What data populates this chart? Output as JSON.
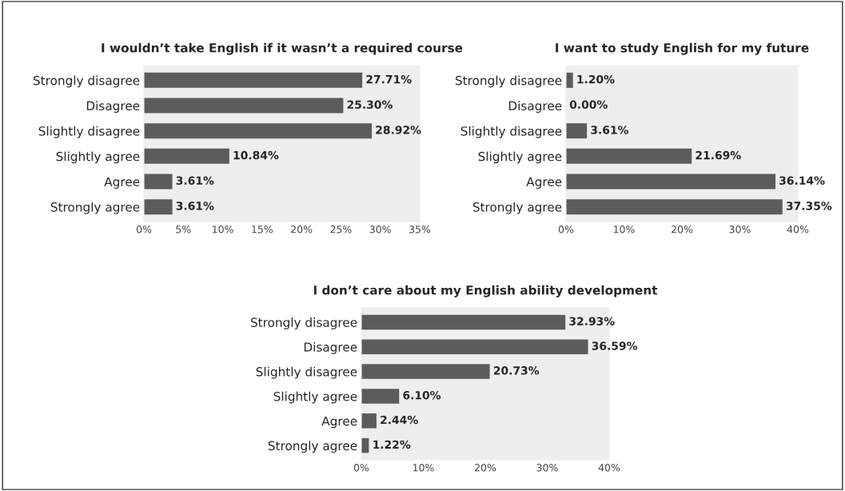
{
  "chart_data": [
    {
      "type": "bar",
      "orientation": "horizontal",
      "title": "I wouldn’t take English if it wasn’t a required course",
      "categories": [
        "Strongly disagree",
        "Disagree",
        "Slightly disagree",
        "Slightly agree",
        "Agree",
        "Strongly agree"
      ],
      "values": [
        27.71,
        25.3,
        28.92,
        10.84,
        3.61,
        3.61
      ],
      "value_labels": [
        "27.71%",
        "25.30%",
        "28.92%",
        "10.84%",
        "3.61%",
        "3.61%"
      ],
      "color": "#5c5c5c",
      "xlim": [
        0,
        35
      ],
      "xticks": [
        {
          "value": 0,
          "label": "0%"
        },
        {
          "value": 5,
          "label": "5%"
        },
        {
          "value": 10,
          "label": "10%"
        },
        {
          "value": 15,
          "label": "15%"
        },
        {
          "value": 20,
          "label": "20%"
        },
        {
          "value": 25,
          "label": "25%"
        },
        {
          "value": 30,
          "label": "30%"
        },
        {
          "value": 35,
          "label": "35%"
        }
      ],
      "grid": false
    },
    {
      "type": "bar",
      "orientation": "horizontal",
      "title": "I want to study English for my future",
      "categories": [
        "Strongly disagree",
        "Disagree",
        "Slightly disagree",
        "Slightly agree",
        "Agree",
        "Strongly agree"
      ],
      "values": [
        1.2,
        0.0,
        3.61,
        21.69,
        36.14,
        37.35
      ],
      "value_labels": [
        "1.20%",
        "0.00%",
        "3.61%",
        "21.69%",
        "36.14%",
        "37.35%"
      ],
      "color": "#5c5c5c",
      "xlim": [
        0,
        40
      ],
      "xticks": [
        {
          "value": 0,
          "label": "0%"
        },
        {
          "value": 10,
          "label": "10%"
        },
        {
          "value": 20,
          "label": "20%"
        },
        {
          "value": 30,
          "label": "30%"
        },
        {
          "value": 40,
          "label": "40%"
        }
      ],
      "grid": false
    },
    {
      "type": "bar",
      "orientation": "horizontal",
      "title": "I don’t care about my English ability development",
      "categories": [
        "Strongly disagree",
        "Disagree",
        "Slightly disagree",
        "Slightly agree",
        "Agree",
        "Strongly agree"
      ],
      "values": [
        32.93,
        36.59,
        20.73,
        6.1,
        2.44,
        1.22
      ],
      "value_labels": [
        "32.93%",
        "36.59%",
        "20.73%",
        "6.10%",
        "2.44%",
        "1.22%"
      ],
      "color": "#5c5c5c",
      "xlim": [
        0,
        40
      ],
      "xticks": [
        {
          "value": 0,
          "label": "0%"
        },
        {
          "value": 10,
          "label": "10%"
        },
        {
          "value": 20,
          "label": "20%"
        },
        {
          "value": 30,
          "label": "30%"
        },
        {
          "value": 40,
          "label": "40%"
        }
      ],
      "grid": false
    }
  ]
}
